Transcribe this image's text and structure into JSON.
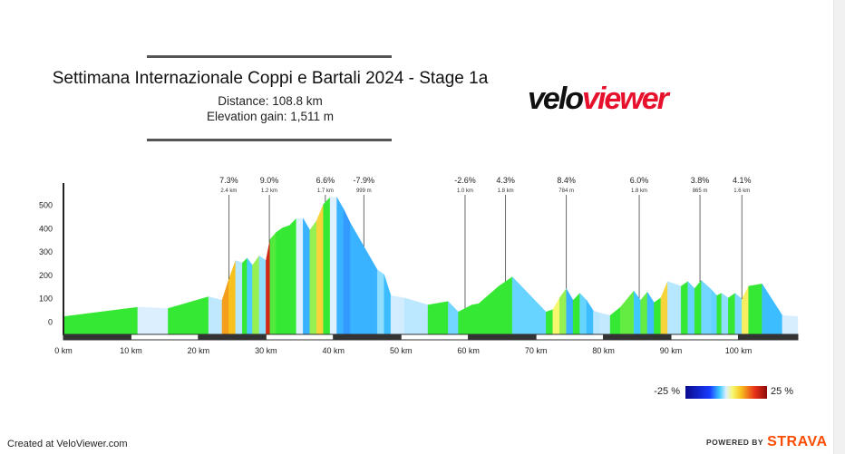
{
  "header": {
    "title": "Settimana Internazionale Coppi e Bartali 2024 - Stage 1a",
    "distance": "Distance: 108.8 km",
    "elevation_gain": "Elevation gain: 1,511 m"
  },
  "logo": {
    "part1": "velo",
    "part2": "viewer",
    "color_dark": "#111111",
    "color_accent": "#e8112d"
  },
  "legend": {
    "min_label": "-25 %",
    "max_label": "25 %"
  },
  "footer": {
    "created": "Created at VeloViewer.com",
    "powered_by": "POWERED BY",
    "brand": "STRAVA",
    "brand_color": "#fc4c02"
  },
  "chart_data": {
    "type": "area",
    "title": "",
    "xlabel": "",
    "ylabel": "",
    "xlim": [
      0,
      108.8
    ],
    "ylim": [
      -60,
      560
    ],
    "x_ticks": [
      0,
      10,
      20,
      30,
      40,
      50,
      60,
      70,
      80,
      90,
      100
    ],
    "x_tick_labels": [
      "0 km",
      "10 km",
      "20 km",
      "30 km",
      "40 km",
      "50 km",
      "60 km",
      "70 km",
      "80 km",
      "90 km",
      "100 km"
    ],
    "y_ticks": [
      0,
      100,
      200,
      300,
      400,
      500
    ],
    "y_tick_labels": [
      "0",
      "100",
      "200",
      "300",
      "400",
      "500"
    ],
    "grid": false,
    "profile_km": [
      0,
      11,
      15.5,
      21.5,
      23.5,
      24.5,
      25.5,
      26.5,
      27.2,
      28,
      29,
      30,
      30.6,
      31.5,
      32.5,
      33.5,
      34.5,
      35.5,
      36.5,
      37.5,
      38.5,
      39.5,
      40.5,
      41.5,
      42.5,
      43.5,
      44.5,
      45.5,
      46.5,
      47.5,
      48.5,
      50.5,
      54,
      57,
      58.5,
      59.5,
      60.5,
      61.5,
      64.5,
      66.5,
      68.5,
      71.5,
      72.5,
      73.5,
      74.5,
      75.5,
      76.5,
      77.5,
      78.5,
      79.5,
      81,
      82.5,
      84.5,
      85.5,
      86.5,
      87.5,
      88.5,
      89.5,
      91.5,
      92.5,
      93.5,
      94.5,
      96,
      96.8,
      97.5,
      98.5,
      99.5,
      100.5,
      101.5,
      103.5,
      106.5,
      108.8
    ],
    "profile_elev": [
      20,
      60,
      55,
      105,
      90,
      180,
      260,
      250,
      270,
      240,
      280,
      260,
      350,
      380,
      400,
      410,
      440,
      440,
      390,
      430,
      500,
      530,
      530,
      480,
      420,
      370,
      320,
      270,
      220,
      200,
      110,
      100,
      70,
      85,
      40,
      55,
      70,
      75,
      150,
      190,
      130,
      40,
      50,
      100,
      140,
      90,
      120,
      90,
      45,
      35,
      25,
      60,
      130,
      90,
      125,
      80,
      100,
      170,
      150,
      170,
      140,
      175,
      135,
      110,
      120,
      100,
      120,
      95,
      150,
      160,
      25,
      20
    ],
    "segment_grades": [
      0.5,
      -0.1,
      0.8,
      -0.8,
      9,
      8,
      -1,
      3,
      -3.7,
      4,
      -2,
      15,
      3.3,
      2,
      1,
      3,
      0,
      -5,
      4,
      7,
      3,
      0,
      -5,
      -6,
      -5,
      -5,
      -5,
      -5,
      -2,
      -4.5,
      -0.3,
      -0.9,
      0.5,
      -2.7,
      1.5,
      1.5,
      0.5,
      2.5,
      2,
      -3,
      -3,
      1,
      5,
      4,
      -5,
      3,
      -3,
      -4.5,
      -1,
      -0.7,
      2.3,
      3.5,
      -4,
      3.5,
      -4.5,
      2,
      7,
      -1,
      2,
      -3,
      2.3,
      -2.7,
      -3.1,
      1.4,
      -2,
      2,
      -2.5,
      5.5,
      0.5,
      -4.5,
      -0.2
    ],
    "climb_labels": [
      {
        "km": 24.5,
        "grade": "7.3%",
        "length": "2.4 km"
      },
      {
        "km": 30.5,
        "grade": "9.0%",
        "length": "1.2 km"
      },
      {
        "km": 38.8,
        "grade": "6.6%",
        "length": "1.7 km"
      },
      {
        "km": 44.5,
        "grade": "-7.9%",
        "length": "999 m"
      },
      {
        "km": 59.5,
        "grade": "-2.6%",
        "length": "1.0 km"
      },
      {
        "km": 65.5,
        "grade": "4.3%",
        "length": "1.8 km"
      },
      {
        "km": 74.5,
        "grade": "8.4%",
        "length": "784 m"
      },
      {
        "km": 85.3,
        "grade": "6.0%",
        "length": "1.8 km"
      },
      {
        "km": 94.3,
        "grade": "3.8%",
        "length": "865 m"
      },
      {
        "km": 100.5,
        "grade": "4.1%",
        "length": "1.6 km"
      }
    ],
    "legend": {
      "min": -25,
      "max": 25
    }
  }
}
